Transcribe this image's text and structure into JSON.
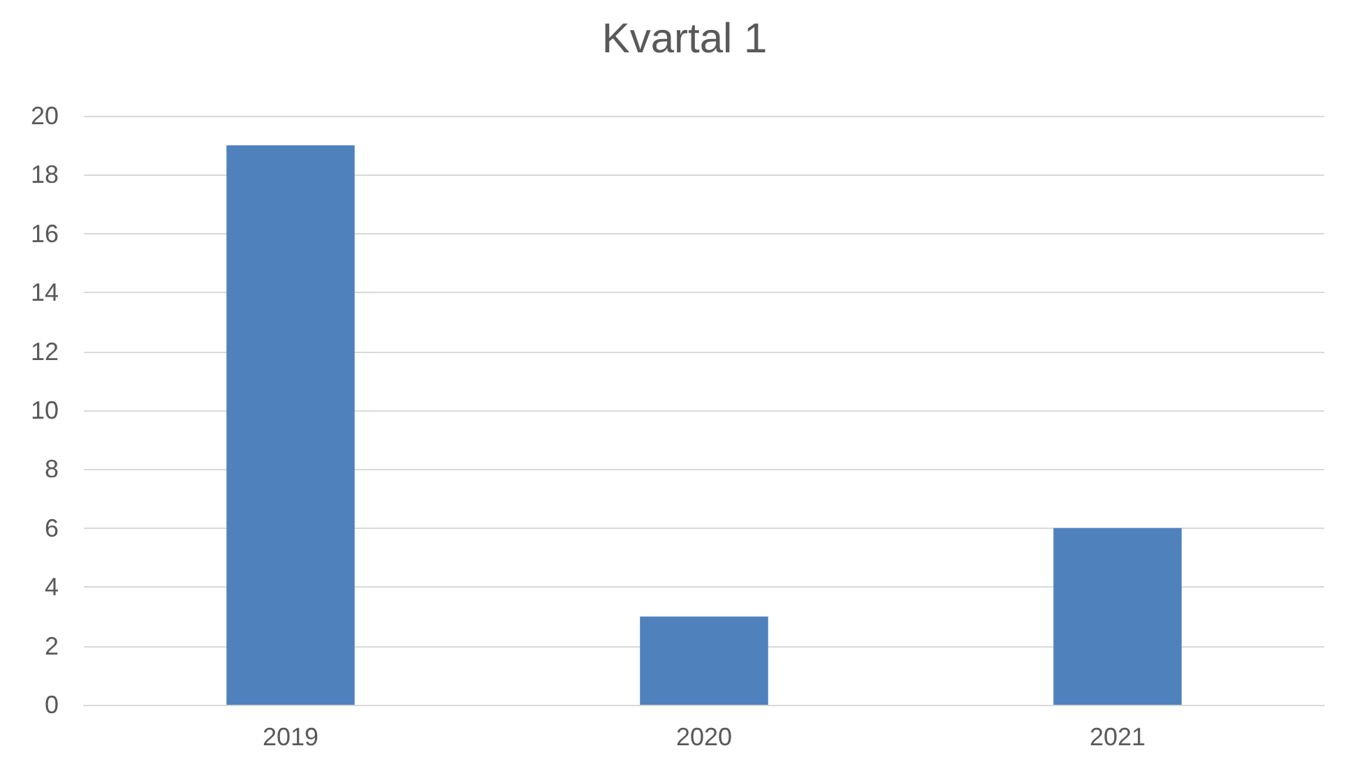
{
  "chart_data": {
    "type": "bar",
    "title": "Kvartal 1",
    "categories": [
      "2019",
      "2020",
      "2021"
    ],
    "values": [
      19,
      3,
      6
    ],
    "color": "#4f81bd",
    "ylim": [
      0,
      20
    ],
    "yticks": [
      0,
      2,
      4,
      6,
      8,
      10,
      12,
      14,
      16,
      18,
      20
    ],
    "grid": "y"
  }
}
